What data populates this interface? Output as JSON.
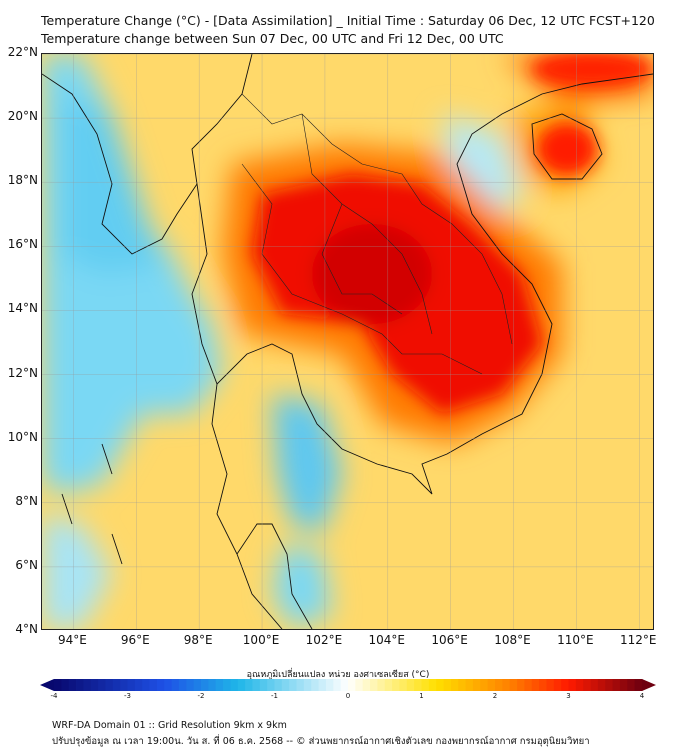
{
  "header": {
    "title_line1": "Temperature Change (°C) - [Data Assimilation] _ Initial Time : Saturday 06 Dec, 12 UTC FCST+120",
    "title_line2": "Temperature change between Sun 07 Dec, 00 UTC and Fri 12 Dec, 00 UTC"
  },
  "map": {
    "lat_labels": [
      "22°N",
      "20°N",
      "18°N",
      "16°N",
      "14°N",
      "12°N",
      "10°N",
      "8°N",
      "6°N",
      "4°N"
    ],
    "lon_labels": [
      "94°E",
      "96°E",
      "98°E",
      "100°E",
      "102°E",
      "104°E",
      "106°E",
      "108°E",
      "110°E",
      "112°E"
    ],
    "lat_range": [
      4,
      22
    ],
    "lon_range": [
      93,
      112.5
    ],
    "lat_ticks": [
      22,
      20,
      18,
      16,
      14,
      12,
      10,
      8,
      6,
      4
    ],
    "lon_ticks": [
      94,
      96,
      98,
      100,
      102,
      104,
      106,
      108,
      110,
      112
    ],
    "hot_regions": [
      {
        "name": "central-thailand-cambodia-maximum",
        "lon": 103.5,
        "lat": 15.0,
        "value": 3.2
      },
      {
        "name": "hainan-maximum",
        "lon": 109.6,
        "lat": 19.2,
        "value": 3.0
      },
      {
        "name": "south-china-coast-maximum",
        "lon": 110.5,
        "lat": 21.8,
        "value": 2.8
      }
    ],
    "cool_regions": [
      {
        "name": "andaman-sea-minimum",
        "lon": 96.0,
        "lat": 14.0,
        "value": -0.8
      },
      {
        "name": "gulf-of-thailand-minimum",
        "lon": 101.0,
        "lat": 10.3,
        "value": -0.9
      },
      {
        "name": "myanmar-west-minimum",
        "lon": 94.5,
        "lat": 19.5,
        "value": -0.7
      }
    ]
  },
  "colorbar": {
    "title": "อุณหภูมิเปลี่ยนแปลง หน่วย องศาเซลเซียส (°C)",
    "ticks": [
      "-4",
      "-3",
      "-2",
      "-1",
      "0",
      "1",
      "2",
      "3",
      "4"
    ],
    "min": -4,
    "max": 4,
    "colors": {
      "min_color": "#08086e",
      "cold_color": "#1fb6e8",
      "neutral_color": "#ffffff",
      "warm_color": "#ffe000",
      "hot_color": "#ff1a00",
      "max_color": "#6e0010"
    }
  },
  "footer": {
    "line1": "WRF-DA Domain 01 :: Grid Resolution 9km x 9km",
    "line2": "ปรับปรุงข้อมูล ณ เวลา 19:00น. วัน ส. ที่ 06 ธ.ค. 2568 -- © ส่วนพยากรณ์อากาศเชิงตัวเลข กองพยากรณ์อากาศ กรมอุตุนิยมวิทยา"
  }
}
